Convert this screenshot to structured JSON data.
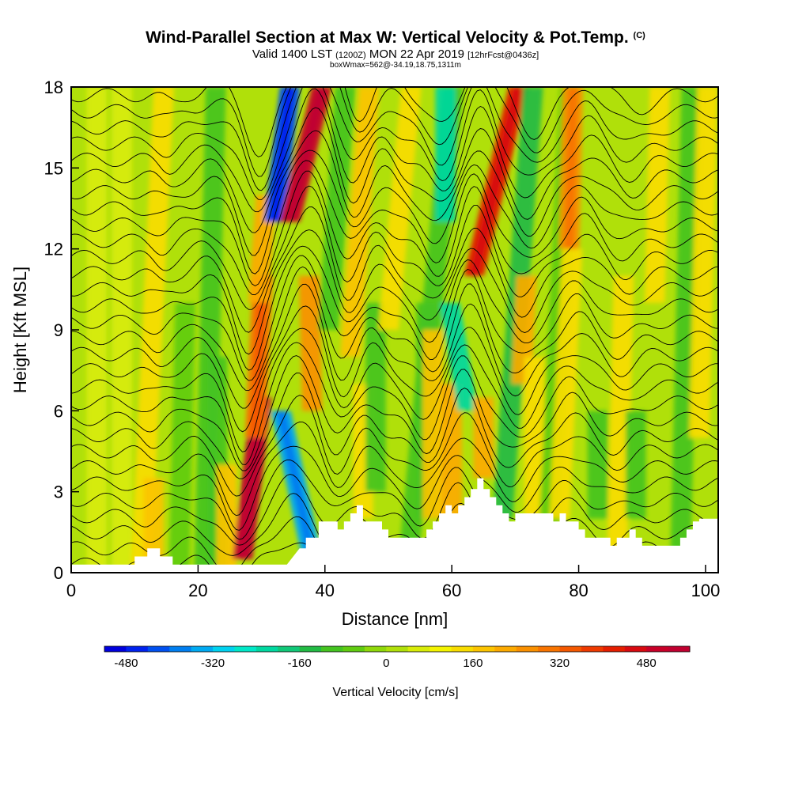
{
  "chart_data": {
    "type": "heatmap",
    "title": "Wind-Parallel Section at Max W: Vertical Velocity & Pot.Temp.",
    "title_mark": "(C)",
    "subtitle_main": "Valid 1400 LST",
    "subtitle_utc": "(1200Z)",
    "subtitle_date": "MON 22 Apr 2019",
    "subtitle_fcst": "[12hrFcst@0436z]",
    "subtitle2": "boxWmax=562@-34.19,18.75,1311m",
    "xlabel": "Distance [nm]",
    "ylabel": "Height [Kft MSL]",
    "xlim": [
      0,
      102
    ],
    "ylim": [
      0,
      18
    ],
    "x_ticks": [
      0,
      20,
      40,
      60,
      80,
      100
    ],
    "y_ticks": [
      0,
      3,
      6,
      9,
      12,
      15,
      18
    ],
    "colorbar": {
      "title": "Vertical Velocity [cm/s]",
      "min": -520,
      "max": 560,
      "step": 40,
      "tick_values": [
        -480,
        -320,
        -160,
        0,
        160,
        320,
        480
      ],
      "tick_labels": [
        "-480",
        "-320",
        "-160",
        "0",
        "160",
        "320",
        "480"
      ],
      "colors": [
        "#0000dd",
        "#0022ee",
        "#0050f0",
        "#007ef0",
        "#00aaf2",
        "#00d2f0",
        "#00e8c8",
        "#00d8a0",
        "#10c878",
        "#22bb44",
        "#44c420",
        "#60cc10",
        "#8fd80a",
        "#b0e00a",
        "#d8ec08",
        "#f4f400",
        "#f8dc00",
        "#fcc400",
        "#fcaa00",
        "#fa9000",
        "#f87400",
        "#f45800",
        "#ee3a00",
        "#e41e00",
        "#d80a10",
        "#c80028",
        "#c00030"
      ]
    },
    "terrain": {
      "x": [
        0,
        10,
        10,
        12,
        12,
        14,
        14,
        16,
        16,
        18,
        34,
        35,
        36,
        37,
        37,
        39,
        39,
        42,
        42,
        43,
        43,
        44,
        44,
        45,
        45,
        46,
        46,
        49,
        49,
        50,
        50,
        56,
        56,
        57,
        57,
        58,
        58,
        59,
        59,
        60,
        60,
        61,
        61,
        62,
        62,
        63,
        63,
        64,
        64,
        65,
        65,
        66,
        66,
        67,
        67,
        68,
        68,
        69,
        69,
        70,
        70,
        76,
        76,
        77,
        77,
        78,
        78,
        80,
        80,
        81,
        81,
        85,
        85,
        86,
        86,
        88,
        88,
        89,
        89,
        90,
        90,
        96,
        96,
        97,
        97,
        98,
        98,
        99,
        99,
        102
      ],
      "y": [
        0.3,
        0.3,
        0.6,
        0.6,
        0.9,
        0.9,
        0.6,
        0.6,
        0.3,
        0.3,
        0.3,
        0.6,
        0.9,
        0.9,
        1.3,
        1.3,
        1.9,
        1.9,
        1.6,
        1.6,
        1.9,
        1.9,
        2.2,
        2.2,
        2.5,
        2.5,
        1.9,
        1.9,
        1.6,
        1.6,
        1.3,
        1.3,
        1.6,
        1.6,
        1.9,
        1.9,
        2.2,
        2.2,
        2.5,
        2.5,
        2.2,
        2.2,
        2.5,
        2.5,
        2.8,
        2.8,
        3.1,
        3.1,
        3.5,
        3.5,
        3.1,
        3.1,
        2.8,
        2.8,
        2.5,
        2.5,
        2.2,
        2.2,
        1.9,
        1.9,
        2.2,
        2.2,
        1.9,
        1.9,
        2.2,
        2.2,
        1.9,
        1.9,
        1.6,
        1.6,
        1.3,
        1.3,
        1.0,
        1.0,
        1.3,
        1.3,
        1.6,
        1.6,
        1.3,
        1.3,
        1.0,
        1.0,
        1.3,
        1.3,
        1.6,
        1.6,
        1.9,
        1.9,
        2.0,
        2.0
      ]
    },
    "bands": [
      {
        "x": 4,
        "w": 50,
        "b": 0,
        "t": 18,
        "tilt": 0.0
      },
      {
        "x": 8,
        "w": 40,
        "b": 0,
        "t": 18,
        "tilt": 0.0
      },
      {
        "x": 11,
        "w": 120,
        "b": 0,
        "t": 18,
        "tilt": 0.2
      },
      {
        "x": 13,
        "w": 160,
        "b": 0,
        "t": 3.5,
        "tilt": 0.0
      },
      {
        "x": 17,
        "w": -70,
        "b": 0,
        "t": 10,
        "tilt": 0.1
      },
      {
        "x": 21,
        "w": -120,
        "b": 0,
        "t": 18,
        "tilt": 0.1
      },
      {
        "x": 23,
        "w": -90,
        "b": 0,
        "t": 8,
        "tilt": 0.0
      },
      {
        "x": 24.5,
        "w": 160,
        "b": 0,
        "t": 4,
        "tilt": 0.0
      },
      {
        "x": 27,
        "w": 520,
        "b": 0.5,
        "t": 6.5,
        "tilt": 0.5
      },
      {
        "x": 29,
        "w": 300,
        "b": 5,
        "t": 11,
        "tilt": 0.2
      },
      {
        "x": 29.5,
        "w": 200,
        "b": 10,
        "t": 14,
        "tilt": 0.3
      },
      {
        "x": 32,
        "w": -420,
        "b": 13,
        "t": 18,
        "tilt": 0.5
      },
      {
        "x": 34.5,
        "w": 500,
        "b": 13,
        "t": 18,
        "tilt": 1.0
      },
      {
        "x": 38,
        "w": -330,
        "b": 0.5,
        "t": 6,
        "tilt": -0.9
      },
      {
        "x": 38,
        "w": 240,
        "b": 6,
        "t": 11,
        "tilt": -0.1
      },
      {
        "x": 40.5,
        "w": -90,
        "b": 9,
        "t": 18,
        "tilt": 0.3
      },
      {
        "x": 44,
        "w": 190,
        "b": 8,
        "t": 18,
        "tilt": 0.3
      },
      {
        "x": 46,
        "w": 120,
        "b": 2,
        "t": 7,
        "tilt": 0.0
      },
      {
        "x": 48,
        "w": -90,
        "b": 3,
        "t": 10,
        "tilt": 0.0
      },
      {
        "x": 50,
        "w": 150,
        "b": 9,
        "t": 18,
        "tilt": 0.4
      },
      {
        "x": 53,
        "w": -120,
        "b": 0,
        "t": 18,
        "tilt": 0.4
      },
      {
        "x": 56,
        "w": -110,
        "b": 2,
        "t": 10,
        "tilt": 0.0
      },
      {
        "x": 57,
        "w": 170,
        "b": 2,
        "t": 9,
        "tilt": 0.0
      },
      {
        "x": 59,
        "w": -210,
        "b": 13,
        "t": 18,
        "tilt": 0.0
      },
      {
        "x": 60,
        "w": 200,
        "b": 2,
        "t": 7,
        "tilt": 0.0
      },
      {
        "x": 62.5,
        "w": -240,
        "b": 6,
        "t": 10,
        "tilt": -0.7
      },
      {
        "x": 63.5,
        "w": 400,
        "b": 11,
        "t": 18,
        "tilt": 1.0
      },
      {
        "x": 65,
        "w": 230,
        "b": 3.5,
        "t": 6.5,
        "tilt": 0.0
      },
      {
        "x": 68,
        "w": -130,
        "b": 2,
        "t": 18,
        "tilt": 0.3
      },
      {
        "x": 71,
        "w": 210,
        "b": 7,
        "t": 11,
        "tilt": 0.2
      },
      {
        "x": 73,
        "w": 150,
        "b": 2,
        "t": 8,
        "tilt": 0.0
      },
      {
        "x": 75,
        "w": -80,
        "b": 0,
        "t": 18,
        "tilt": 0.2
      },
      {
        "x": 78.5,
        "w": 260,
        "b": 12,
        "t": 18,
        "tilt": 0.1
      },
      {
        "x": 77,
        "w": 120,
        "b": 2,
        "t": 12,
        "tilt": 0.2
      },
      {
        "x": 83,
        "w": -110,
        "b": 2,
        "t": 6,
        "tilt": 0.0
      },
      {
        "x": 86,
        "w": 150,
        "b": 0,
        "t": 11,
        "tilt": 0.1
      },
      {
        "x": 89,
        "w": -90,
        "b": 2,
        "t": 6,
        "tilt": 0.0
      },
      {
        "x": 92,
        "w": 120,
        "b": 10,
        "t": 18,
        "tilt": 0.1
      },
      {
        "x": 96,
        "w": -110,
        "b": 0,
        "t": 18,
        "tilt": 0.1
      },
      {
        "x": 99,
        "w": 130,
        "b": 5,
        "t": 18,
        "tilt": 0.1
      }
    ],
    "isentropes": [
      0.3,
      0.9,
      1.5,
      2.1,
      2.7,
      3.3,
      3.9,
      4.5,
      5.1,
      5.7,
      6.3,
      6.9,
      7.5,
      8.1,
      8.7,
      9.3,
      9.9,
      10.5,
      11.1,
      11.7,
      12.3,
      12.9,
      13.5,
      14.1,
      14.7,
      15.3,
      15.9,
      16.5,
      17.1,
      17.7
    ],
    "isentrope_perturbations": [
      {
        "x": 27,
        "a": -2.2,
        "w": 3.0
      },
      {
        "x": 36,
        "a": 2.4,
        "w": 4.0
      },
      {
        "x": 42,
        "a": -1.0,
        "w": 2.5
      },
      {
        "x": 47,
        "a": 0.8,
        "w": 2.5
      },
      {
        "x": 56,
        "a": -1.2,
        "w": 3.0
      },
      {
        "x": 62,
        "a": 1.8,
        "w": 3.0
      },
      {
        "x": 70,
        "a": -1.4,
        "w": 3.5
      },
      {
        "x": 79,
        "a": 0.8,
        "w": 3.0
      },
      {
        "x": 86,
        "a": -0.6,
        "w": 3.0
      },
      {
        "x": 13,
        "a": -0.3,
        "w": 2.0
      },
      {
        "x": 20,
        "a": 0.4,
        "w": 3.0
      }
    ]
  }
}
